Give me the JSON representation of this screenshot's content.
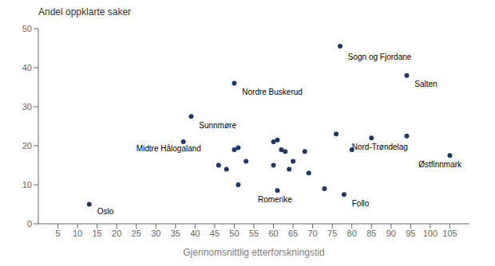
{
  "chart_data": {
    "type": "scatter",
    "xlabel": "Gjennomsnittlig etterforskningstid",
    "ylabel": "Andel oppklarte saker",
    "x": [
      13,
      37,
      39,
      50,
      46,
      48,
      50,
      51,
      51,
      53,
      60,
      61,
      60,
      61,
      62,
      63,
      64,
      65,
      68,
      69,
      73,
      77,
      76,
      78,
      80,
      85,
      94,
      94,
      105
    ],
    "values": [
      5,
      21,
      27.5,
      36,
      15,
      14,
      19,
      19.5,
      10,
      16,
      21,
      21.5,
      15,
      8.5,
      19,
      18.5,
      14,
      16,
      18.5,
      13,
      9,
      45.5,
      23,
      7.5,
      19,
      22,
      38,
      22.5,
      17.5
    ],
    "color": "#1f3864",
    "xlim": [
      0,
      110
    ],
    "ylim": [
      0,
      50
    ],
    "xticks": [
      5,
      10,
      15,
      20,
      25,
      30,
      35,
      40,
      45,
      50,
      55,
      60,
      65,
      70,
      75,
      80,
      85,
      90,
      95,
      100,
      105
    ],
    "yticks": [
      0,
      10,
      20,
      30,
      40,
      50
    ],
    "grid": false,
    "annotations": [
      {
        "text": "Oslo",
        "x": 15,
        "y": 4
      },
      {
        "text": "Midtre Hålogaland",
        "x": 25,
        "y": 20
      },
      {
        "text": "Sunnmøre",
        "x": 41,
        "y": 26
      },
      {
        "text": "Nordre Buskerud",
        "x": 52,
        "y": 34.5
      },
      {
        "text": "Romerike",
        "x": 56,
        "y": 7
      },
      {
        "text": "Sogn og Fjordane",
        "x": 79,
        "y": 43.5
      },
      {
        "text": "Follo",
        "x": 80,
        "y": 6
      },
      {
        "text": "Nord-Trøndelag",
        "x": 80,
        "y": 20.5
      },
      {
        "text": "Salten",
        "x": 96,
        "y": 36.5
      },
      {
        "text": "Østfinnmark",
        "x": 97,
        "y": 16
      }
    ]
  }
}
